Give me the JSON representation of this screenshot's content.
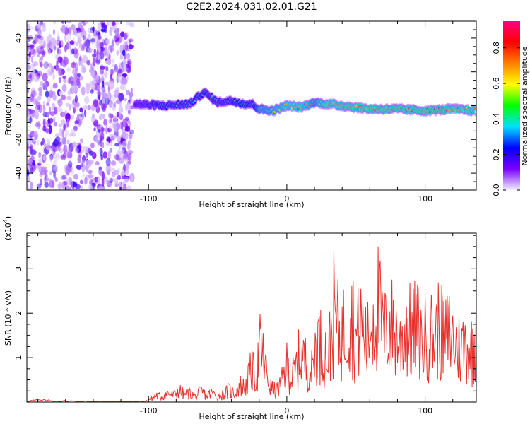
{
  "title": "C2E2.2024.031.02.01.G21",
  "chart_data": [
    {
      "type": "heatmap",
      "xlabel": "Height of straight line (km)",
      "ylabel": "Frequency (Hz)",
      "xlim": [
        -188,
        137
      ],
      "ylim": [
        -50,
        50
      ],
      "xticks": [
        -100,
        0,
        100
      ],
      "xtick_labels": [
        "-100",
        "0",
        "100"
      ],
      "yticks": [
        -40,
        -20,
        0,
        20,
        40
      ],
      "ytick_labels": [
        "-40",
        "-20",
        "0",
        "20",
        "40"
      ],
      "colorbar": {
        "label": "Normalized spectral amplitude",
        "range": [
          0,
          0.95
        ],
        "ticks": [
          "0.0",
          "0.2",
          "0.4",
          "0.6",
          "0.8"
        ],
        "colormap": [
          "#f0f0ff",
          "#7a00ff",
          "#0000ff",
          "#00e0ff",
          "#00ff00",
          "#ffff00",
          "#ff8000",
          "#ff0000",
          "#ff0080"
        ]
      },
      "ridge": {
        "x": [
          -110,
          -90,
          -70,
          -60,
          -50,
          -40,
          -30,
          -25,
          -20,
          -10,
          0,
          10,
          20,
          30,
          40,
          60,
          80,
          100,
          120,
          137
        ],
        "frequency": [
          1,
          0,
          1,
          8,
          2,
          3,
          1,
          1,
          -2,
          -3,
          0,
          -1,
          2,
          1,
          0,
          -2,
          -2,
          -3,
          -2,
          -3
        ],
        "peak_amplitude": [
          0.3,
          0.45,
          0.45,
          0.5,
          0.4,
          0.45,
          0.6,
          0.4,
          0.7,
          0.75,
          0.8,
          0.9,
          0.7,
          0.85,
          0.9,
          0.9,
          0.9,
          0.9,
          0.9,
          0.85
        ]
      },
      "noise_region_x": [
        -188,
        -112
      ]
    },
    {
      "type": "line",
      "xlabel": "Height of straight line (km)",
      "ylabel": "SNR (10 * v/v)",
      "y_scale_label": "(x10",
      "y_scale_exponent": "4",
      "xlim": [
        -188,
        137
      ],
      "ylim": [
        0,
        38000
      ],
      "xticks": [
        -100,
        0,
        100
      ],
      "xtick_labels": [
        "-100",
        "0",
        "100"
      ],
      "yticks": [
        10000,
        20000,
        30000
      ],
      "ytick_labels": [
        "1",
        "2",
        "3"
      ],
      "series": [
        {
          "color": "#e8302c",
          "x": [
            -188,
            -180,
            -170,
            -160,
            -150,
            -140,
            -130,
            -120,
            -110,
            -102,
            -98,
            -94,
            -90,
            -86,
            -82,
            -78,
            -74,
            -70,
            -66,
            -62,
            -58,
            -54,
            -50,
            -46,
            -42,
            -38,
            -34,
            -30,
            -26,
            -22,
            -19,
            -16,
            -12,
            -8,
            -4,
            0,
            3,
            6,
            10,
            14,
            18,
            22,
            26,
            30,
            34,
            38,
            42,
            46,
            50,
            54,
            58,
            62,
            66,
            70,
            74,
            78,
            82,
            86,
            90,
            94,
            98,
            102,
            106,
            110,
            114,
            118,
            122,
            126,
            130,
            134,
            137
          ],
          "y": [
            400,
            700,
            500,
            400,
            300,
            300,
            200,
            200,
            200,
            300,
            1500,
            2500,
            2000,
            3500,
            2500,
            4500,
            3000,
            3500,
            2000,
            4000,
            2500,
            3500,
            2000,
            3000,
            4500,
            3500,
            6500,
            5500,
            12000,
            10500,
            22000,
            14000,
            6000,
            4000,
            7000,
            14000,
            9000,
            12000,
            19000,
            15000,
            12000,
            25000,
            20000,
            18000,
            34000,
            26000,
            28000,
            37000,
            24000,
            31000,
            22000,
            33000,
            37500,
            25000,
            30000,
            28000,
            22000,
            31000,
            26000,
            29000,
            22000,
            27000,
            25000,
            29000,
            24000,
            27000,
            22000,
            21000,
            23000,
            20000,
            28000
          ]
        }
      ]
    }
  ]
}
